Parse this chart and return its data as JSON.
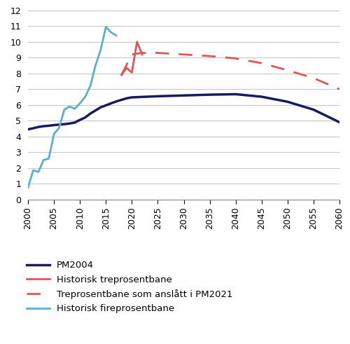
{
  "pm2004": {
    "x": [
      2000,
      2001,
      2002,
      2003,
      2004,
      2005,
      2006,
      2007,
      2008,
      2009,
      2010,
      2011,
      2012,
      2013,
      2014,
      2015,
      2016,
      2017,
      2018,
      2019,
      2020,
      2025,
      2030,
      2035,
      2040,
      2045,
      2050,
      2055,
      2060
    ],
    "y": [
      4.45,
      4.52,
      4.6,
      4.65,
      4.68,
      4.72,
      4.75,
      4.78,
      4.82,
      4.88,
      5.05,
      5.2,
      5.45,
      5.65,
      5.85,
      5.97,
      6.1,
      6.22,
      6.32,
      6.42,
      6.48,
      6.55,
      6.6,
      6.65,
      6.68,
      6.52,
      6.2,
      5.7,
      4.9
    ],
    "color": "#1a1a5e",
    "linewidth": 2.5,
    "label": "PM2004"
  },
  "historisk_tre": {
    "x": [
      2018,
      2019,
      2020,
      2021,
      2022
    ],
    "y": [
      7.9,
      8.35,
      8.05,
      10.0,
      9.2
    ],
    "color": "#e05555",
    "linewidth": 2.0,
    "label": "Historisk treprosentbane"
  },
  "pm2021_tre": {
    "x": [
      2018,
      2020,
      2022,
      2025,
      2030,
      2035,
      2040,
      2045,
      2050,
      2055,
      2060
    ],
    "y": [
      7.9,
      9.2,
      9.3,
      9.3,
      9.2,
      9.1,
      8.95,
      8.65,
      8.2,
      7.7,
      7.0
    ],
    "color": "#e05555",
    "linewidth": 2.0,
    "label": "Treprosentbane som anslått i PM2021"
  },
  "historisk_fire": {
    "x": [
      2000,
      2001,
      2002,
      2003,
      2004,
      2005,
      2006,
      2007,
      2008,
      2009,
      2010,
      2011,
      2012,
      2013,
      2014,
      2015,
      2016,
      2017
    ],
    "y": [
      0.75,
      1.85,
      1.75,
      2.5,
      2.6,
      4.15,
      4.55,
      5.7,
      5.9,
      5.75,
      6.1,
      6.5,
      7.2,
      8.5,
      9.5,
      10.95,
      10.6,
      10.4
    ],
    "color": "#5badd1",
    "linewidth": 2.0,
    "label": "Historisk fireprosentbane"
  },
  "ylim": [
    0,
    12
  ],
  "xlim": [
    2000,
    2060
  ],
  "yticks": [
    0,
    1,
    2,
    3,
    4,
    5,
    6,
    7,
    8,
    9,
    10,
    11,
    12
  ],
  "xticks": [
    2000,
    2005,
    2010,
    2015,
    2020,
    2025,
    2030,
    2035,
    2040,
    2045,
    2050,
    2055,
    2060
  ],
  "grid_color": "#c8c8c8",
  "background_color": "#ffffff",
  "tick_fontsize": 9,
  "legend_fontsize": 9.5
}
